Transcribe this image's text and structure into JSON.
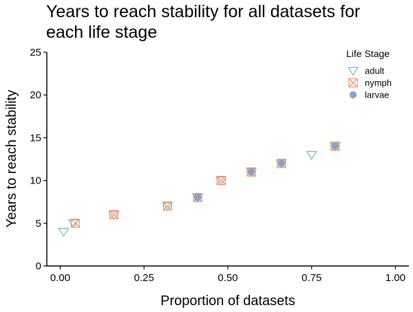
{
  "chart_data": {
    "type": "scatter",
    "title_lines": [
      "Years to reach stability for all datasets for",
      "each life stage"
    ],
    "xlabel": "Proportion of datasets",
    "ylabel": "Years to reach stability",
    "xlim": [
      -0.04,
      1.04
    ],
    "ylim": [
      0,
      25
    ],
    "x_ticks": [
      0,
      0.25,
      0.5,
      0.75,
      1
    ],
    "x_tick_labels": [
      "0.00",
      "0.25",
      "0.50",
      "0.75",
      "1.00"
    ],
    "y_ticks": [
      0,
      5,
      10,
      15,
      20,
      25
    ],
    "y_tick_labels": [
      "0",
      "5",
      "10",
      "15",
      "20",
      "25"
    ],
    "grid": false,
    "legend": {
      "title": "Life Stage",
      "position": "top-right"
    },
    "series": [
      {
        "name": "adult",
        "color": "#66c2a5",
        "marker": "triangle-down",
        "x": [
          0.01,
          0.04,
          0.16,
          0.32,
          0.41,
          0.48,
          0.57,
          0.66,
          0.75,
          0.82
        ],
        "y": [
          4,
          5,
          6,
          7,
          8,
          10,
          11,
          12,
          13,
          14
        ]
      },
      {
        "name": "nymph",
        "color": "#fc8d62",
        "marker": "square-x",
        "x": [
          0.045,
          0.16,
          0.32,
          0.41,
          0.48,
          0.57,
          0.66,
          0.82
        ],
        "y": [
          5,
          6,
          7,
          8,
          10,
          11,
          12,
          14
        ]
      },
      {
        "name": "larvae",
        "color": "#8da0cb",
        "marker": "circle",
        "x": [
          0.41,
          0.57,
          0.66,
          0.82
        ],
        "y": [
          8,
          11,
          12,
          14
        ]
      }
    ]
  }
}
